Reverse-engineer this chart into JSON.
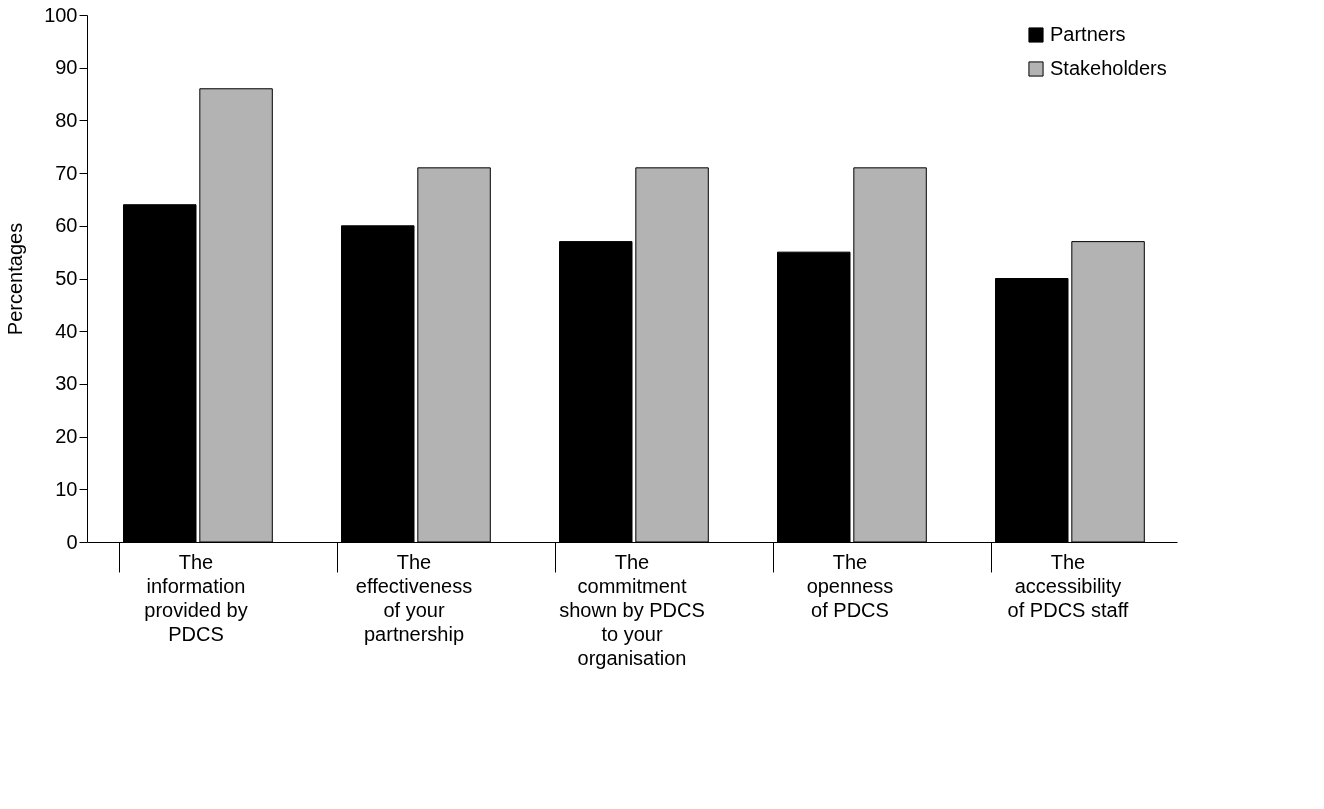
{
  "chart_data": {
    "type": "bar",
    "ylabel": "Percentages",
    "categories": [
      "The\ninformation\nprovided by\nPDCS",
      "The\neffectiveness\nof your\npartnership",
      "The\ncommitment\nshown by PDCS\nto your\norganisation",
      "The\nopenness\nof PDCS",
      "The\naccessibility\nof PDCS staff"
    ],
    "series": [
      {
        "name": "Partners",
        "color": "#000000",
        "values": [
          64,
          60,
          57,
          55,
          50
        ]
      },
      {
        "name": "Stakeholders",
        "color": "#b3b3b3",
        "values": [
          86,
          71,
          71,
          71,
          57
        ]
      }
    ],
    "ylim": [
      0,
      100
    ],
    "yticks": [
      0,
      10,
      20,
      30,
      40,
      50,
      60,
      70,
      80,
      90,
      100
    ],
    "grid": false,
    "legend": "top right"
  }
}
